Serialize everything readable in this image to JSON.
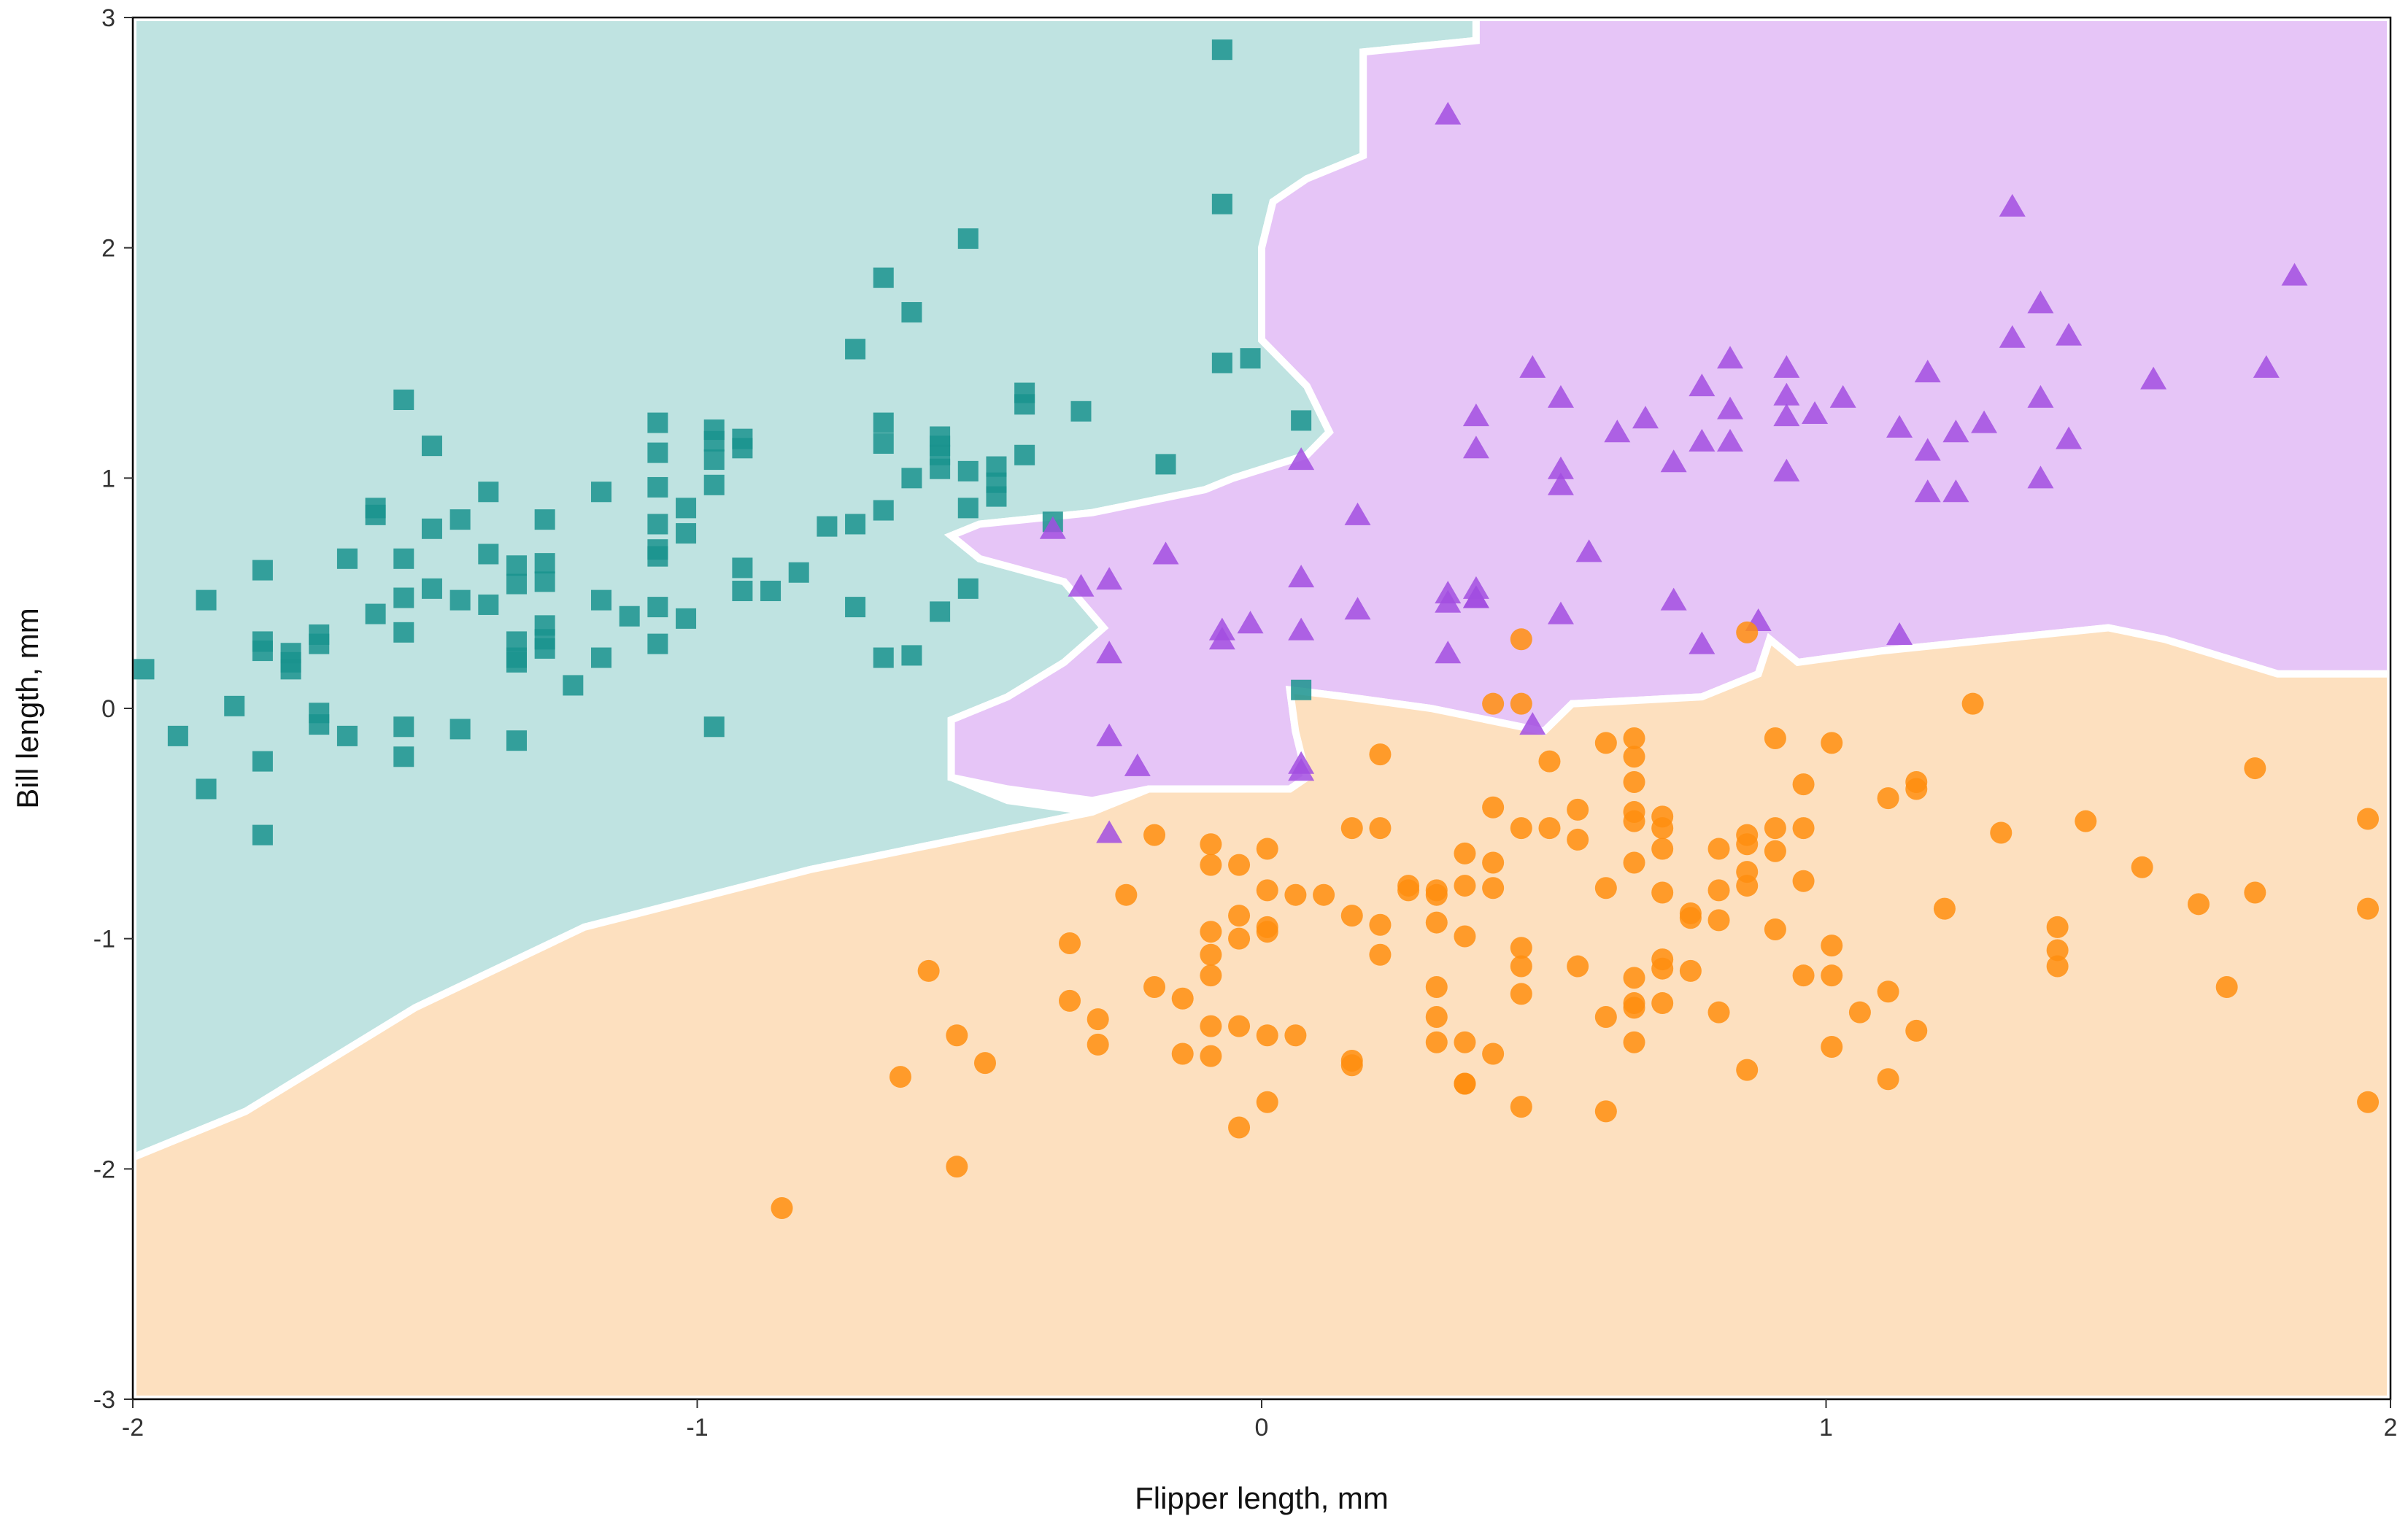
{
  "chart_data": {
    "type": "scatter",
    "title": "",
    "xlabel": "Flipper length, mm",
    "ylabel": "Bill length, mm",
    "xlim": [
      -2,
      2
    ],
    "ylim": [
      -3,
      3
    ],
    "x_ticks": [
      "-2",
      "-1",
      "0",
      "1",
      "2"
    ],
    "y_ticks": [
      "-3",
      "-2",
      "-1",
      "0",
      "1",
      "2",
      "3"
    ],
    "grid": false,
    "legend": "none",
    "regions": [
      {
        "class": "square",
        "color": "#bfe3e1",
        "polygon": [
          [
            -2,
            3
          ],
          [
            0.38,
            3
          ],
          [
            0.38,
            2.9
          ],
          [
            0.18,
            2.85
          ],
          [
            0.18,
            2.4
          ],
          [
            0.08,
            2.3
          ],
          [
            0.02,
            2.2
          ],
          [
            0,
            2.0
          ],
          [
            0,
            1.6
          ],
          [
            0.08,
            1.4
          ],
          [
            0.12,
            1.2
          ],
          [
            0.08,
            1.1
          ],
          [
            -0.05,
            1.0
          ],
          [
            -0.1,
            0.95
          ],
          [
            -0.3,
            0.85
          ],
          [
            -0.5,
            0.8
          ],
          [
            -0.55,
            0.75
          ],
          [
            -0.5,
            0.65
          ],
          [
            -0.35,
            0.55
          ],
          [
            -0.28,
            0.35
          ],
          [
            -0.35,
            0.2
          ],
          [
            -0.45,
            0.05
          ],
          [
            -0.55,
            -0.05
          ],
          [
            -0.55,
            -0.3
          ],
          [
            -0.45,
            -0.4
          ],
          [
            -0.3,
            -0.45
          ],
          [
            -0.5,
            -0.55
          ],
          [
            -0.8,
            -0.7
          ],
          [
            -1.2,
            -0.95
          ],
          [
            -1.5,
            -1.3
          ],
          [
            -1.8,
            -1.75
          ],
          [
            -2,
            -1.95
          ]
        ]
      },
      {
        "class": "triangle",
        "color": "#e6c5f7",
        "polygon": [
          [
            0.38,
            3
          ],
          [
            2,
            3
          ],
          [
            2,
            0.15
          ],
          [
            1.8,
            0.15
          ],
          [
            1.6,
            0.3
          ],
          [
            1.5,
            0.35
          ],
          [
            1.3,
            0.3
          ],
          [
            1.1,
            0.25
          ],
          [
            0.95,
            0.2
          ],
          [
            0.9,
            0.3
          ],
          [
            0.88,
            0.15
          ],
          [
            0.78,
            0.05
          ],
          [
            0.55,
            0.02
          ],
          [
            0.5,
            -0.1
          ],
          [
            0.4,
            -0.05
          ],
          [
            0.3,
            0
          ],
          [
            0.15,
            0.05
          ],
          [
            0.05,
            0.08
          ],
          [
            0.06,
            -0.1
          ],
          [
            0.08,
            -0.3
          ],
          [
            0.05,
            -0.35
          ],
          [
            -0.05,
            -0.35
          ],
          [
            -0.2,
            -0.35
          ],
          [
            -0.3,
            -0.4
          ],
          [
            -0.45,
            -0.35
          ],
          [
            -0.55,
            -0.3
          ],
          [
            -0.55,
            -0.05
          ],
          [
            -0.45,
            0.05
          ],
          [
            -0.35,
            0.2
          ],
          [
            -0.28,
            0.35
          ],
          [
            -0.35,
            0.55
          ],
          [
            -0.5,
            0.65
          ],
          [
            -0.55,
            0.75
          ],
          [
            -0.5,
            0.8
          ],
          [
            -0.3,
            0.85
          ],
          [
            -0.1,
            0.95
          ],
          [
            -0.05,
            1.0
          ],
          [
            0.08,
            1.1
          ],
          [
            0.12,
            1.2
          ],
          [
            0.08,
            1.4
          ],
          [
            0,
            1.6
          ],
          [
            0,
            2.0
          ],
          [
            0.02,
            2.2
          ],
          [
            0.08,
            2.3
          ],
          [
            0.18,
            2.4
          ],
          [
            0.18,
            2.85
          ],
          [
            0.38,
            2.9
          ]
        ]
      },
      {
        "class": "circle",
        "color": "#fde0bf",
        "polygon": [
          [
            -2,
            -1.95
          ],
          [
            -1.8,
            -1.75
          ],
          [
            -1.5,
            -1.3
          ],
          [
            -1.2,
            -0.95
          ],
          [
            -0.8,
            -0.7
          ],
          [
            -0.5,
            -0.55
          ],
          [
            -0.3,
            -0.45
          ],
          [
            -0.2,
            -0.35
          ],
          [
            -0.05,
            -0.35
          ],
          [
            0.05,
            -0.35
          ],
          [
            0.08,
            -0.3
          ],
          [
            0.06,
            -0.1
          ],
          [
            0.05,
            0.08
          ],
          [
            0.15,
            0.05
          ],
          [
            0.3,
            0
          ],
          [
            0.4,
            -0.05
          ],
          [
            0.5,
            -0.1
          ],
          [
            0.55,
            0.02
          ],
          [
            0.78,
            0.05
          ],
          [
            0.88,
            0.15
          ],
          [
            0.9,
            0.3
          ],
          [
            0.95,
            0.2
          ],
          [
            1.1,
            0.25
          ],
          [
            1.3,
            0.3
          ],
          [
            1.5,
            0.35
          ],
          [
            1.6,
            0.3
          ],
          [
            1.8,
            0.15
          ],
          [
            2,
            0.15
          ],
          [
            2,
            -3
          ],
          [
            -2,
            -3
          ]
        ]
      }
    ],
    "series": [
      {
        "marker": "square",
        "color": "#1a938e",
        "x": [
          -1.98,
          -1.92,
          -1.87,
          -1.87,
          -1.82,
          -1.77,
          -1.77,
          -1.77,
          -1.77,
          -1.77,
          -1.72,
          -1.72,
          -1.72,
          -1.67,
          -1.67,
          -1.67,
          -1.67,
          -1.62,
          -1.62,
          -1.57,
          -1.57,
          -1.57,
          -1.52,
          -1.52,
          -1.52,
          -1.52,
          -1.52,
          -1.52,
          -1.47,
          -1.47,
          -1.47,
          -1.42,
          -1.42,
          -1.42,
          -1.37,
          -1.37,
          -1.37,
          -1.32,
          -1.32,
          -1.32,
          -1.32,
          -1.32,
          -1.32,
          -1.27,
          -1.27,
          -1.27,
          -1.27,
          -1.27,
          -1.27,
          -1.22,
          -1.17,
          -1.17,
          -1.17,
          -1.12,
          -1.07,
          -1.07,
          -1.07,
          -1.07,
          -1.07,
          -1.07,
          -1.07,
          -1.07,
          -1.02,
          -1.02,
          -1.02,
          -0.97,
          -0.97,
          -0.97,
          -0.97,
          -0.97,
          -0.92,
          -0.92,
          -0.92,
          -0.92,
          -0.87,
          -0.82,
          -0.77,
          -0.72,
          -0.72,
          -0.72,
          -0.67,
          -0.67,
          -0.67,
          -0.67,
          -0.67,
          -0.62,
          -0.62,
          -0.62,
          -0.57,
          -0.57,
          -0.57,
          -0.57,
          -0.57,
          -0.52,
          -0.52,
          -0.52,
          -0.52,
          -0.47,
          -0.47,
          -0.47,
          -0.42,
          -0.42,
          -0.42,
          -0.37,
          -0.32,
          -0.17,
          -0.07,
          -0.07,
          -0.07,
          -0.02,
          0.07,
          0.07
        ],
        "y": [
          0.17,
          -0.12,
          0.47,
          -0.35,
          0.01,
          0.6,
          0.29,
          0.25,
          -0.23,
          -0.55,
          0.24,
          0.2,
          0.17,
          0.32,
          0.28,
          -0.02,
          -0.07,
          0.65,
          -0.12,
          0.87,
          0.84,
          0.41,
          1.34,
          0.65,
          0.48,
          0.33,
          -0.08,
          -0.21,
          1.14,
          0.78,
          0.52,
          0.82,
          0.47,
          -0.09,
          0.94,
          0.67,
          0.45,
          0.62,
          0.54,
          0.29,
          0.22,
          0.2,
          -0.14,
          0.82,
          0.63,
          0.55,
          0.36,
          0.3,
          0.26,
          0.1,
          0.94,
          0.47,
          0.22,
          0.4,
          1.24,
          1.11,
          0.96,
          0.8,
          0.69,
          0.66,
          0.44,
          0.28,
          0.87,
          0.76,
          0.39,
          1.21,
          1.16,
          1.08,
          0.97,
          -0.08,
          1.17,
          1.13,
          0.61,
          0.51,
          0.51,
          0.59,
          0.79,
          1.56,
          0.44,
          0.8,
          1.87,
          1.24,
          1.15,
          0.86,
          0.22,
          1.72,
          1.0,
          0.23,
          1.18,
          1.14,
          1.1,
          1.04,
          0.42,
          2.04,
          1.03,
          0.87,
          0.52,
          1.05,
          0.98,
          0.92,
          1.37,
          1.32,
          1.1,
          0.81,
          1.29,
          1.06,
          1.5,
          2.19,
          2.86,
          1.52,
          1.25,
          0.08
        ]
      },
      {
        "marker": "triangle",
        "color": "#a24de0",
        "x": [
          -0.37,
          -0.32,
          -0.27,
          -0.27,
          -0.27,
          -0.27,
          -0.22,
          -0.17,
          -0.07,
          -0.07,
          -0.02,
          0.07,
          0.07,
          0.07,
          0.07,
          0.07,
          0.17,
          0.17,
          0.33,
          0.33,
          0.33,
          0.33,
          0.38,
          0.38,
          0.38,
          0.38,
          0.38,
          0.48,
          0.48,
          0.53,
          0.53,
          0.53,
          0.53,
          0.58,
          0.63,
          0.68,
          0.73,
          0.73,
          0.78,
          0.78,
          0.78,
          0.83,
          0.83,
          0.83,
          0.88,
          0.93,
          0.93,
          0.93,
          0.93,
          0.98,
          1.03,
          1.13,
          1.13,
          1.18,
          1.18,
          1.18,
          1.23,
          1.23,
          1.28,
          1.33,
          1.33,
          1.38,
          1.38,
          1.38,
          1.43,
          1.43,
          1.58,
          1.78,
          1.83
        ],
        "y": [
          0.78,
          0.53,
          0.56,
          0.24,
          -0.12,
          -0.54,
          -0.25,
          0.67,
          0.3,
          0.34,
          0.37,
          0.57,
          0.34,
          -0.24,
          -0.27,
          1.08,
          0.84,
          0.43,
          2.58,
          0.5,
          0.46,
          0.24,
          1.27,
          1.13,
          0.52,
          0.48,
          0.48,
          1.48,
          -0.07,
          1.35,
          1.04,
          0.97,
          0.41,
          0.68,
          1.2,
          1.26,
          1.07,
          0.47,
          1.4,
          1.16,
          0.28,
          1.52,
          1.3,
          1.16,
          0.38,
          1.48,
          1.36,
          1.27,
          1.03,
          1.28,
          1.35,
          1.22,
          0.32,
          1.46,
          1.12,
          0.94,
          1.2,
          0.94,
          1.24,
          2.18,
          1.61,
          1.76,
          1.35,
          1.0,
          1.62,
          1.17,
          1.43,
          1.48,
          1.88
        ]
      },
      {
        "marker": "circle",
        "color": "#ff8e0f",
        "x": [
          -0.85,
          -0.64,
          -0.59,
          -0.54,
          -0.54,
          -0.49,
          -0.34,
          -0.34,
          -0.29,
          -0.29,
          -0.24,
          -0.19,
          -0.19,
          -0.14,
          -0.14,
          -0.09,
          -0.09,
          -0.09,
          -0.09,
          -0.09,
          -0.09,
          -0.09,
          -0.04,
          -0.04,
          -0.04,
          -0.04,
          -0.04,
          0.01,
          0.01,
          0.01,
          0.01,
          0.01,
          0.01,
          0.06,
          0.06,
          0.11,
          0.16,
          0.16,
          0.16,
          0.16,
          0.21,
          0.21,
          0.21,
          0.21,
          0.26,
          0.26,
          0.31,
          0.31,
          0.31,
          0.31,
          0.31,
          0.36,
          0.36,
          0.36,
          0.36,
          0.36,
          0.36,
          0.41,
          0.41,
          0.41,
          0.41,
          0.46,
          0.46,
          0.46,
          0.46,
          0.46,
          0.46,
          0.46,
          0.51,
          0.51,
          0.56,
          0.56,
          0.56,
          0.61,
          0.61,
          0.61,
          0.61,
          0.66,
          0.66,
          0.66,
          0.66,
          0.66,
          0.66,
          0.66,
          0.66,
          0.66,
          0.71,
          0.71,
          0.71,
          0.71,
          0.71,
          0.71,
          0.71,
          0.76,
          0.76,
          0.76,
          0.81,
          0.81,
          0.81,
          0.81,
          0.86,
          0.86,
          0.86,
          0.86,
          0.86,
          0.91,
          0.91,
          0.91,
          0.91,
          0.96,
          0.96,
          0.96,
          0.96,
          1.01,
          1.01,
          1.01,
          1.01,
          1.06,
          1.11,
          1.11,
          1.11,
          1.16,
          1.16,
          1.16,
          1.21,
          1.26,
          1.31,
          1.41,
          1.41,
          1.41,
          1.46,
          1.56,
          1.66,
          1.71,
          1.76,
          1.76,
          1.96,
          1.96,
          1.96,
          0.41,
          0.86,
          0.31,
          0.66
        ],
        "y": [
          -2.17,
          -1.6,
          -1.14,
          -1.42,
          -1.99,
          -1.54,
          -1.02,
          -1.27,
          -1.35,
          -1.46,
          -0.81,
          -0.55,
          -1.21,
          -1.26,
          -1.5,
          -0.59,
          -0.68,
          -0.97,
          -1.07,
          -1.16,
          -1.38,
          -1.51,
          -0.68,
          -0.9,
          -1.0,
          -1.38,
          -1.82,
          -0.61,
          -0.79,
          -0.95,
          -0.97,
          -1.42,
          -1.71,
          -1.42,
          -0.81,
          -0.81,
          -0.52,
          -0.9,
          -1.53,
          -1.55,
          -0.2,
          -0.52,
          -0.94,
          -1.07,
          -0.77,
          -0.79,
          -0.81,
          -0.93,
          -1.21,
          -1.34,
          -1.45,
          -0.63,
          -0.77,
          -0.99,
          -1.45,
          -1.63,
          -1.63,
          -0.43,
          -0.67,
          -1.5,
          -0.78,
          -0.52,
          -1.04,
          -1.12,
          -1.24,
          -1.73,
          0.3,
          0.02,
          -0.52,
          -0.23,
          -0.44,
          -1.12,
          -0.57,
          -0.78,
          -1.34,
          -1.75,
          -0.15,
          -0.21,
          -0.32,
          -0.45,
          -0.49,
          -0.67,
          -1.17,
          -1.3,
          -1.45,
          -0.13,
          -0.47,
          -0.52,
          -0.61,
          -0.8,
          -1.09,
          -1.13,
          -1.28,
          -0.89,
          -0.91,
          -1.14,
          -0.61,
          -0.79,
          -0.92,
          -1.32,
          -0.55,
          -0.59,
          -0.71,
          -0.77,
          -1.57,
          -0.13,
          -0.52,
          -0.62,
          -0.96,
          -0.33,
          -0.52,
          -0.75,
          -1.16,
          -0.15,
          -1.03,
          -1.47,
          -1.16,
          -1.32,
          -0.39,
          -1.23,
          -1.61,
          -0.32,
          -0.35,
          -1.4,
          -0.87,
          0.02,
          -0.54,
          -0.95,
          -1.05,
          -1.12,
          -0.49,
          -0.69,
          -0.85,
          -1.21,
          -0.8,
          -0.26,
          -0.48,
          -0.87,
          -1.71,
          0.02,
          0.33,
          -0.79,
          -1.28
        ]
      }
    ]
  }
}
